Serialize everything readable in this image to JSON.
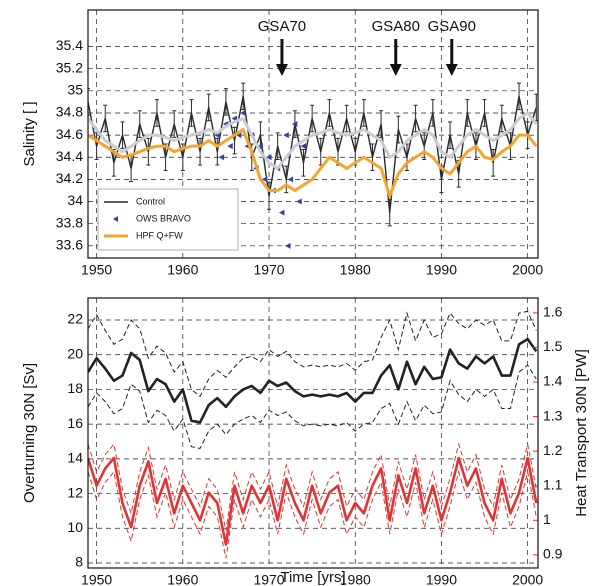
{
  "chart_data": [
    {
      "type": "line",
      "ylabel": "Salinity [ ]",
      "xlim": [
        1949,
        2001.2
      ],
      "xticks": [
        1950,
        1960,
        1970,
        1980,
        1990,
        2000
      ],
      "ylim": [
        33.49,
        35.73
      ],
      "yticks": [
        33.6,
        33.8,
        34,
        34.2,
        34.4,
        34.6,
        34.8,
        35,
        35.2,
        35.4
      ],
      "grid": true,
      "legend": "lower left",
      "x": [
        1949,
        1950,
        1951,
        1952,
        1953,
        1954,
        1955,
        1956,
        1957,
        1958,
        1959,
        1960,
        1961,
        1962,
        1963,
        1964,
        1965,
        1966,
        1967,
        1968,
        1969,
        1970,
        1971,
        1972,
        1973,
        1974,
        1975,
        1976,
        1977,
        1978,
        1979,
        1980,
        1981,
        1982,
        1983,
        1984,
        1985,
        1986,
        1987,
        1988,
        1989,
        1990,
        1991,
        1992,
        1993,
        1994,
        1995,
        1996,
        1997,
        1998,
        1999,
        2000,
        2001
      ],
      "annotations": [
        {
          "text": "GSA70",
          "x": 1971.5
        },
        {
          "text": "GSA80",
          "x": 1984.7
        },
        {
          "text": "GSA90",
          "x": 1991.2
        }
      ],
      "series": [
        {
          "name": "Control",
          "color": "#2a2a2a",
          "error": 0.12,
          "values": [
            34.9,
            34.5,
            34.75,
            34.35,
            34.6,
            34.3,
            34.7,
            34.45,
            34.8,
            34.4,
            34.7,
            34.4,
            34.8,
            34.45,
            34.85,
            34.45,
            34.9,
            34.55,
            34.95,
            34.4,
            34.6,
            34.05,
            34.5,
            34.2,
            34.7,
            34.35,
            34.75,
            34.45,
            34.8,
            34.45,
            34.75,
            34.45,
            34.8,
            34.4,
            34.7,
            33.9,
            34.65,
            34.4,
            34.75,
            34.5,
            34.8,
            34.2,
            34.6,
            34.25,
            34.8,
            34.5,
            34.8,
            34.35,
            34.75,
            34.5,
            34.95,
            34.6,
            34.85
          ]
        },
        {
          "name": "OWS BRAVO",
          "color": "#3a3fa6",
          "type": "scatter",
          "x": [
            1962.5,
            1962.8,
            1964,
            1964.5,
            1965,
            1965.5,
            1966,
            1966.5,
            1967,
            1967.5,
            1968,
            1968.5,
            1969,
            1969.5,
            1970,
            1970.5,
            1971,
            1971.5,
            1972,
            1972.2,
            1972.5,
            1973,
            1973.5,
            1974
          ],
          "values": [
            34,
            33.8,
            34.6,
            34.4,
            34.7,
            34.5,
            34.75,
            34.6,
            34.8,
            34.5,
            34.6,
            34.3,
            34.5,
            34.2,
            34.4,
            34.1,
            34.3,
            33.9,
            34.6,
            33.6,
            34.2,
            34.7,
            34,
            34.5
          ]
        },
        {
          "name": "HPF Q+FW",
          "color": "#f2a630",
          "values": [
            34.6,
            34.55,
            34.5,
            34.45,
            34.4,
            34.42,
            34.45,
            34.48,
            34.5,
            34.5,
            34.45,
            34.48,
            34.5,
            34.5,
            34.55,
            34.5,
            34.55,
            34.6,
            34.65,
            34.45,
            34.2,
            34.1,
            34.1,
            34.15,
            34.1,
            34.15,
            34.2,
            34.3,
            34.4,
            34.35,
            34.3,
            34.35,
            34.4,
            34.35,
            34.3,
            34.05,
            34.25,
            34.35,
            34.4,
            34.45,
            34.4,
            34.3,
            34.25,
            34.35,
            34.45,
            34.5,
            34.4,
            34.38,
            34.45,
            34.5,
            34.6,
            34.6,
            34.5
          ]
        },
        {
          "color": "#c9ccd3",
          "values": [
            34.75,
            34.65,
            34.55,
            34.5,
            34.45,
            34.5,
            34.55,
            34.6,
            34.6,
            34.58,
            34.55,
            34.58,
            34.6,
            34.62,
            34.65,
            34.62,
            34.68,
            34.72,
            34.75,
            34.6,
            34.45,
            34.35,
            34.3,
            34.4,
            34.5,
            34.55,
            34.6,
            34.62,
            34.65,
            34.62,
            34.6,
            34.62,
            34.65,
            34.6,
            34.55,
            34.4,
            34.45,
            34.55,
            34.6,
            34.65,
            34.6,
            34.45,
            34.4,
            34.5,
            34.6,
            34.65,
            34.6,
            34.55,
            34.6,
            34.65,
            34.75,
            34.8,
            34.7
          ]
        }
      ]
    },
    {
      "type": "line",
      "xlabel": "Time [yrs]",
      "ylabel": "Overturning 30N [Sv]",
      "y2label": "Heat Transport 30N [PW]",
      "xlim": [
        1949,
        2001.2
      ],
      "xticks": [
        1950,
        1960,
        1970,
        1980,
        1990,
        2000
      ],
      "ylim": [
        7.71,
        23.27
      ],
      "yticks": [
        8,
        10,
        12,
        14,
        16,
        18,
        20,
        22
      ],
      "y2lim": [
        0.862,
        1.643
      ],
      "y2ticks": [
        0.9,
        1,
        1.1,
        1.2,
        1.3,
        1.4,
        1.5,
        1.6
      ],
      "y2color": "#e03434",
      "grid": true,
      "x": [
        1949,
        1950,
        1951,
        1952,
        1953,
        1954,
        1955,
        1956,
        1957,
        1958,
        1959,
        1960,
        1961,
        1962,
        1963,
        1964,
        1965,
        1966,
        1967,
        1968,
        1969,
        1970,
        1971,
        1972,
        1973,
        1974,
        1975,
        1976,
        1977,
        1978,
        1979,
        1980,
        1981,
        1982,
        1983,
        1984,
        1985,
        1986,
        1987,
        1988,
        1989,
        1990,
        1991,
        1992,
        1993,
        1994,
        1995,
        1996,
        1997,
        1998,
        1999,
        2000,
        2001
      ],
      "series": [
        {
          "color": "#222222",
          "values": [
            19,
            19.8,
            19.2,
            18.5,
            18.8,
            20.1,
            19.7,
            17.9,
            18.6,
            18.3,
            17.3,
            18,
            16.2,
            16.1,
            17.1,
            17.5,
            17,
            17.6,
            18,
            18.2,
            17.8,
            18.5,
            18.2,
            18.4,
            17.9,
            17.6,
            17.7,
            17.6,
            17.7,
            17.6,
            17.8,
            17.3,
            17.8,
            17.8,
            18.8,
            19.4,
            18,
            19.6,
            18.3,
            19.3,
            18.6,
            18.7,
            20.3,
            19.5,
            19.2,
            19.9,
            19.5,
            19.9,
            18.8,
            18.8,
            20.6,
            20.9,
            20.2
          ],
          "upper": [
            21.5,
            22.3,
            21.4,
            20.6,
            20.9,
            22,
            21.5,
            19.8,
            20.5,
            20.1,
            19,
            19.6,
            18,
            17.6,
            18.6,
            19.1,
            18.7,
            19.3,
            19.8,
            19.9,
            19.6,
            20.3,
            19.9,
            20.2,
            19.6,
            19.3,
            19.4,
            19.3,
            19.4,
            19.3,
            19.5,
            19.1,
            19.6,
            19.7,
            21,
            22,
            20.3,
            22.4,
            20.8,
            22,
            21,
            21.2,
            22.4,
            21.8,
            21.5,
            22,
            21.7,
            22,
            20.8,
            20.8,
            22.4,
            22.5,
            21.4
          ],
          "lower": [
            17,
            17.8,
            17.3,
            16.6,
            16.9,
            18.3,
            17.9,
            16.1,
            16.8,
            16.5,
            15.6,
            16.3,
            14.7,
            14.6,
            15.6,
            16,
            15.4,
            16,
            16.3,
            16.5,
            16.1,
            16.8,
            16.5,
            16.7,
            16.2,
            15.9,
            16,
            15.9,
            16,
            15.9,
            16.1,
            15.6,
            16,
            16.1,
            16.9,
            17.2,
            16,
            17.3,
            16.2,
            17.1,
            16.6,
            16.7,
            18.5,
            17.7,
            17.3,
            18,
            17.6,
            18,
            16.9,
            16.9,
            19,
            19.4,
            18.6
          ]
        },
        {
          "color": "#e03434",
          "axis": "y2",
          "values": [
            1.18,
            1.1,
            1.15,
            1.18,
            1.05,
            0.98,
            1.1,
            1.17,
            1.05,
            1.12,
            1.02,
            1.1,
            1.05,
            1,
            1.08,
            1.05,
            0.93,
            1.1,
            1.02,
            1.1,
            1.05,
            1.1,
            1,
            1.12,
            1.05,
            1,
            1.1,
            1.02,
            1.08,
            1.1,
            1,
            1.05,
            1.02,
            1.1,
            1.15,
            1,
            1.13,
            1.05,
            1.15,
            1.02,
            1.1,
            1,
            1.08,
            1.18,
            1.1,
            1.15,
            1.05,
            1,
            1.12,
            1.02,
            1.08,
            1.18,
            1.05
          ],
          "upper": [
            1.22,
            1.14,
            1.19,
            1.22,
            1.09,
            1.02,
            1.14,
            1.21,
            1.09,
            1.16,
            1.06,
            1.14,
            1.09,
            1.04,
            1.12,
            1.09,
            0.97,
            1.14,
            1.06,
            1.14,
            1.09,
            1.14,
            1.04,
            1.16,
            1.09,
            1.04,
            1.14,
            1.06,
            1.12,
            1.14,
            1.04,
            1.09,
            1.06,
            1.14,
            1.19,
            1.04,
            1.17,
            1.09,
            1.19,
            1.06,
            1.14,
            1.04,
            1.12,
            1.22,
            1.14,
            1.19,
            1.09,
            1.04,
            1.16,
            1.06,
            1.12,
            1.22,
            1.09
          ],
          "lower": [
            1.14,
            1.06,
            1.11,
            1.14,
            1.01,
            0.94,
            1.06,
            1.13,
            1.01,
            1.08,
            0.98,
            1.06,
            1.01,
            0.96,
            1.04,
            1.01,
            0.89,
            1.06,
            0.98,
            1.06,
            1.01,
            1.06,
            0.96,
            1.08,
            1.01,
            0.96,
            1.06,
            0.98,
            1.04,
            1.06,
            0.96,
            1.01,
            0.98,
            1.06,
            1.11,
            0.96,
            1.09,
            1.01,
            1.11,
            0.98,
            1.06,
            0.96,
            1.04,
            1.14,
            1.06,
            1.11,
            1.01,
            0.96,
            1.08,
            0.98,
            1.04,
            1.14,
            1.01
          ]
        }
      ]
    }
  ]
}
